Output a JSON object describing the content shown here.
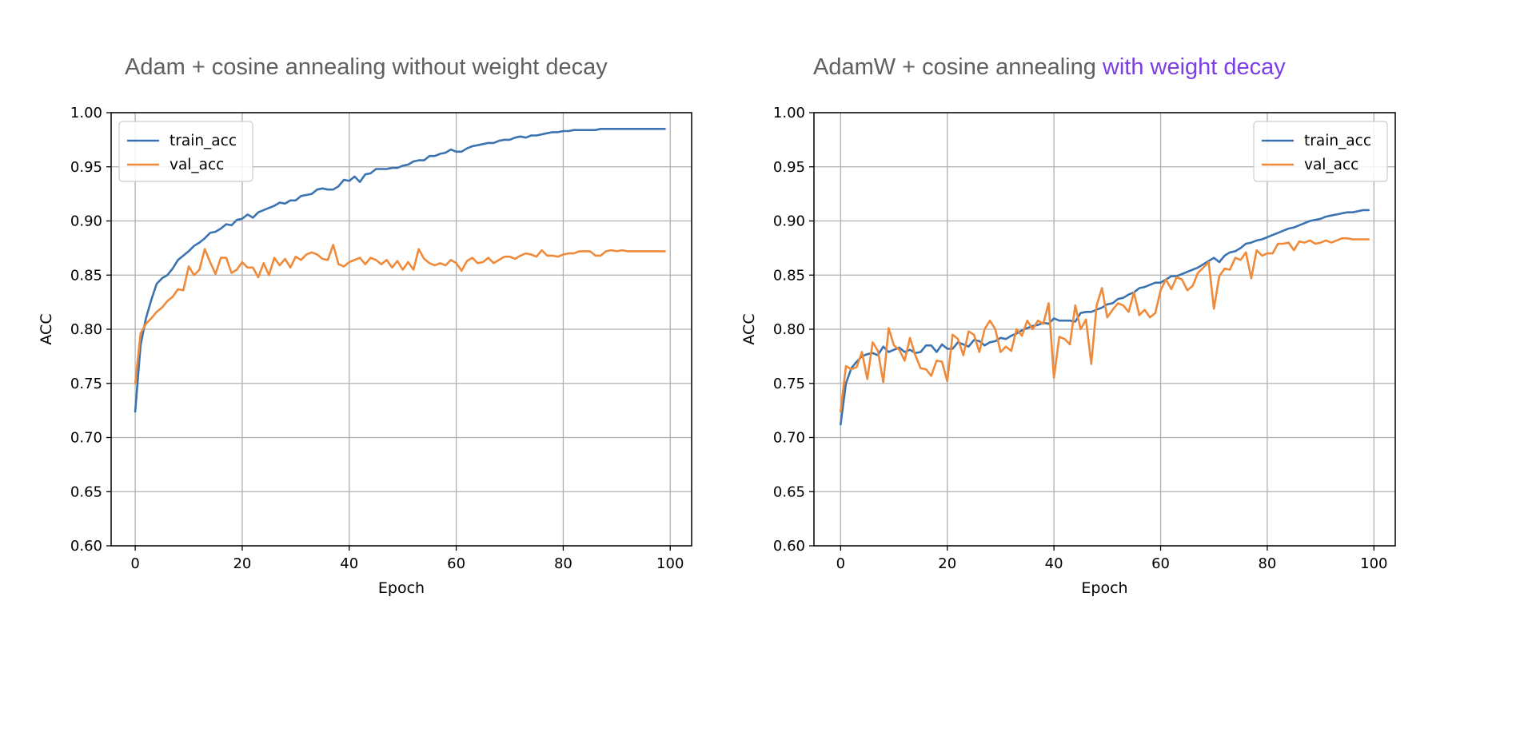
{
  "colors": {
    "train": "#3b73b0",
    "val": "#ef8a3a",
    "title": "#606060",
    "title_highlight": "#7b3fe4"
  },
  "chart_data": [
    {
      "type": "line",
      "title": "Adam + cosine annealing without weight decay",
      "title_highlight": "",
      "xlabel": "Epoch",
      "ylabel": "ACC",
      "xlim": [
        -4.5,
        104
      ],
      "ylim": [
        0.6,
        1.0
      ],
      "xticks": [
        0,
        20,
        40,
        60,
        80,
        100
      ],
      "xtick_labels": [
        "0",
        "20",
        "40",
        "60",
        "80",
        "100"
      ],
      "yticks": [
        0.6,
        0.65,
        0.7,
        0.75,
        0.8,
        0.85,
        0.9,
        0.95,
        1.0
      ],
      "ytick_labels": [
        "0.60",
        "0.65",
        "0.70",
        "0.75",
        "0.80",
        "0.85",
        "0.90",
        "0.95",
        "1.00"
      ],
      "grid": true,
      "legend": "upper-left",
      "series": [
        {
          "name": "train_acc",
          "color": "#3b73b0",
          "values": [
            0.724,
            0.785,
            0.81,
            0.827,
            0.842,
            0.847,
            0.85,
            0.856,
            0.864,
            0.868,
            0.872,
            0.877,
            0.88,
            0.884,
            0.889,
            0.89,
            0.893,
            0.897,
            0.896,
            0.901,
            0.902,
            0.906,
            0.903,
            0.908,
            0.91,
            0.912,
            0.914,
            0.917,
            0.916,
            0.919,
            0.919,
            0.923,
            0.924,
            0.925,
            0.929,
            0.93,
            0.929,
            0.929,
            0.932,
            0.938,
            0.937,
            0.941,
            0.936,
            0.943,
            0.944,
            0.948,
            0.948,
            0.948,
            0.949,
            0.949,
            0.951,
            0.952,
            0.955,
            0.956,
            0.956,
            0.96,
            0.96,
            0.962,
            0.963,
            0.966,
            0.964,
            0.964,
            0.967,
            0.969,
            0.97,
            0.971,
            0.972,
            0.972,
            0.974,
            0.975,
            0.975,
            0.977,
            0.978,
            0.977,
            0.979,
            0.979,
            0.98,
            0.981,
            0.982,
            0.982,
            0.983,
            0.983,
            0.984,
            0.984,
            0.984,
            0.984,
            0.984,
            0.985,
            0.985,
            0.985,
            0.985,
            0.985,
            0.985,
            0.985,
            0.985,
            0.985,
            0.985,
            0.985,
            0.985,
            0.985
          ]
        },
        {
          "name": "val_acc",
          "color": "#ef8a3a",
          "values": [
            0.75,
            0.796,
            0.805,
            0.81,
            0.816,
            0.82,
            0.826,
            0.83,
            0.837,
            0.836,
            0.858,
            0.85,
            0.855,
            0.874,
            0.862,
            0.851,
            0.866,
            0.866,
            0.852,
            0.855,
            0.862,
            0.857,
            0.857,
            0.848,
            0.861,
            0.85,
            0.866,
            0.859,
            0.865,
            0.857,
            0.867,
            0.864,
            0.869,
            0.871,
            0.869,
            0.865,
            0.864,
            0.878,
            0.86,
            0.858,
            0.862,
            0.864,
            0.866,
            0.86,
            0.866,
            0.864,
            0.86,
            0.864,
            0.857,
            0.863,
            0.855,
            0.862,
            0.855,
            0.874,
            0.865,
            0.861,
            0.859,
            0.861,
            0.859,
            0.864,
            0.861,
            0.854,
            0.863,
            0.866,
            0.861,
            0.862,
            0.866,
            0.861,
            0.864,
            0.867,
            0.867,
            0.865,
            0.868,
            0.87,
            0.869,
            0.867,
            0.873,
            0.868,
            0.868,
            0.867,
            0.869,
            0.87,
            0.87,
            0.872,
            0.872,
            0.872,
            0.868,
            0.868,
            0.872,
            0.873,
            0.872,
            0.873,
            0.872,
            0.872,
            0.872,
            0.872,
            0.872,
            0.872,
            0.872,
            0.872
          ]
        }
      ]
    },
    {
      "type": "line",
      "title": "AdamW + cosine annealing ",
      "title_highlight": "with weight decay",
      "xlabel": "Epoch",
      "ylabel": "ACC",
      "xlim": [
        -5,
        104
      ],
      "ylim": [
        0.6,
        1.0
      ],
      "xticks": [
        0,
        20,
        40,
        60,
        80,
        100
      ],
      "xtick_labels": [
        "0",
        "20",
        "40",
        "60",
        "80",
        "100"
      ],
      "yticks": [
        0.6,
        0.65,
        0.7,
        0.75,
        0.8,
        0.85,
        0.9,
        0.95,
        1.0
      ],
      "ytick_labels": [
        "0.60",
        "0.65",
        "0.70",
        "0.75",
        "0.80",
        "0.85",
        "0.90",
        "0.95",
        "1.00"
      ],
      "grid": true,
      "legend": "upper-right",
      "series": [
        {
          "name": "train_acc",
          "color": "#3b73b0",
          "values": [
            0.712,
            0.75,
            0.764,
            0.77,
            0.775,
            0.777,
            0.778,
            0.776,
            0.784,
            0.779,
            0.781,
            0.783,
            0.779,
            0.781,
            0.778,
            0.779,
            0.785,
            0.785,
            0.779,
            0.786,
            0.782,
            0.782,
            0.788,
            0.786,
            0.784,
            0.79,
            0.789,
            0.785,
            0.788,
            0.789,
            0.792,
            0.791,
            0.794,
            0.796,
            0.799,
            0.801,
            0.803,
            0.804,
            0.806,
            0.805,
            0.81,
            0.808,
            0.808,
            0.808,
            0.807,
            0.815,
            0.816,
            0.816,
            0.818,
            0.82,
            0.823,
            0.824,
            0.828,
            0.829,
            0.832,
            0.834,
            0.838,
            0.839,
            0.841,
            0.843,
            0.843,
            0.846,
            0.849,
            0.849,
            0.851,
            0.853,
            0.855,
            0.857,
            0.86,
            0.863,
            0.866,
            0.862,
            0.868,
            0.871,
            0.872,
            0.875,
            0.879,
            0.88,
            0.882,
            0.883,
            0.885,
            0.887,
            0.889,
            0.891,
            0.893,
            0.894,
            0.896,
            0.898,
            0.9,
            0.901,
            0.902,
            0.904,
            0.905,
            0.906,
            0.907,
            0.908,
            0.908,
            0.909,
            0.91,
            0.91
          ]
        },
        {
          "name": "val_acc",
          "color": "#ef8a3a",
          "values": [
            0.724,
            0.766,
            0.763,
            0.765,
            0.779,
            0.754,
            0.788,
            0.78,
            0.751,
            0.801,
            0.785,
            0.781,
            0.771,
            0.792,
            0.776,
            0.764,
            0.763,
            0.757,
            0.771,
            0.77,
            0.752,
            0.795,
            0.791,
            0.776,
            0.798,
            0.795,
            0.779,
            0.8,
            0.808,
            0.8,
            0.779,
            0.784,
            0.78,
            0.8,
            0.794,
            0.808,
            0.8,
            0.808,
            0.805,
            0.824,
            0.755,
            0.793,
            0.791,
            0.786,
            0.822,
            0.8,
            0.809,
            0.768,
            0.822,
            0.838,
            0.811,
            0.818,
            0.824,
            0.822,
            0.816,
            0.834,
            0.813,
            0.818,
            0.811,
            0.815,
            0.836,
            0.846,
            0.837,
            0.848,
            0.846,
            0.836,
            0.84,
            0.852,
            0.857,
            0.862,
            0.819,
            0.849,
            0.856,
            0.855,
            0.866,
            0.864,
            0.871,
            0.847,
            0.873,
            0.868,
            0.87,
            0.87,
            0.879,
            0.879,
            0.88,
            0.873,
            0.881,
            0.88,
            0.882,
            0.879,
            0.88,
            0.882,
            0.88,
            0.882,
            0.884,
            0.884,
            0.883,
            0.883,
            0.883,
            0.883
          ]
        }
      ]
    }
  ]
}
